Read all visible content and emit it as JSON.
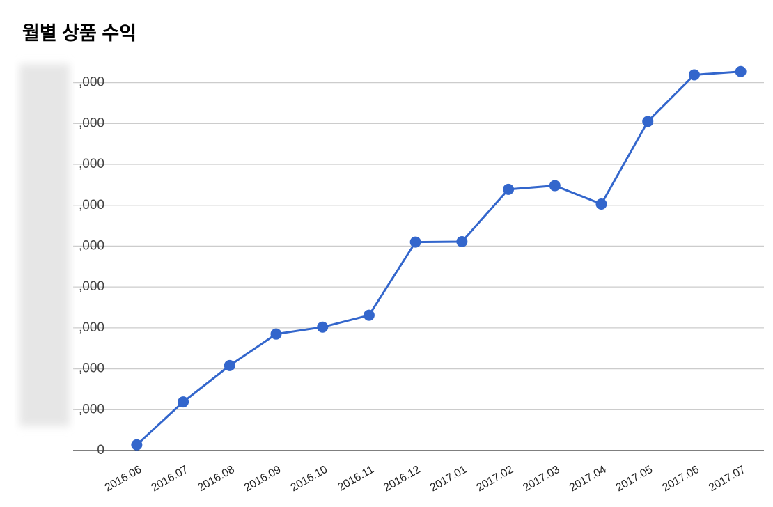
{
  "chart_data": {
    "type": "line",
    "title": "월별 상품 수익",
    "categories": [
      "2016.06",
      "2016.07",
      "2016.08",
      "2016.09",
      "2016.10",
      "2016.11",
      "2016.12",
      "2017.01",
      "2017.02",
      "2017.03",
      "2017.04",
      "2017.05",
      "2017.06",
      "2017.07"
    ],
    "series": [
      {
        "color": "#3366cc",
        "values": [
          0.14,
          1.19,
          2.08,
          2.85,
          3.02,
          3.31,
          5.1,
          5.11,
          6.39,
          6.48,
          6.03,
          8.05,
          9.19,
          9.27
        ]
      }
    ],
    "ylim": [
      0,
      9.3
    ],
    "yticks": [
      0,
      {
        "value": 1,
        "label": ",000"
      },
      {
        "value": 2,
        "label": ",000"
      },
      {
        "value": 3,
        "label": ",000"
      },
      {
        "value": 4,
        "label": ",000"
      },
      {
        "value": 5,
        "label": ",000"
      },
      {
        "value": 6,
        "label": ",000"
      },
      {
        "value": 7,
        "label": ",000"
      },
      {
        "value": 8,
        "label": ",000"
      },
      {
        "value": 9,
        "label": ",000"
      }
    ],
    "grid": true
  }
}
